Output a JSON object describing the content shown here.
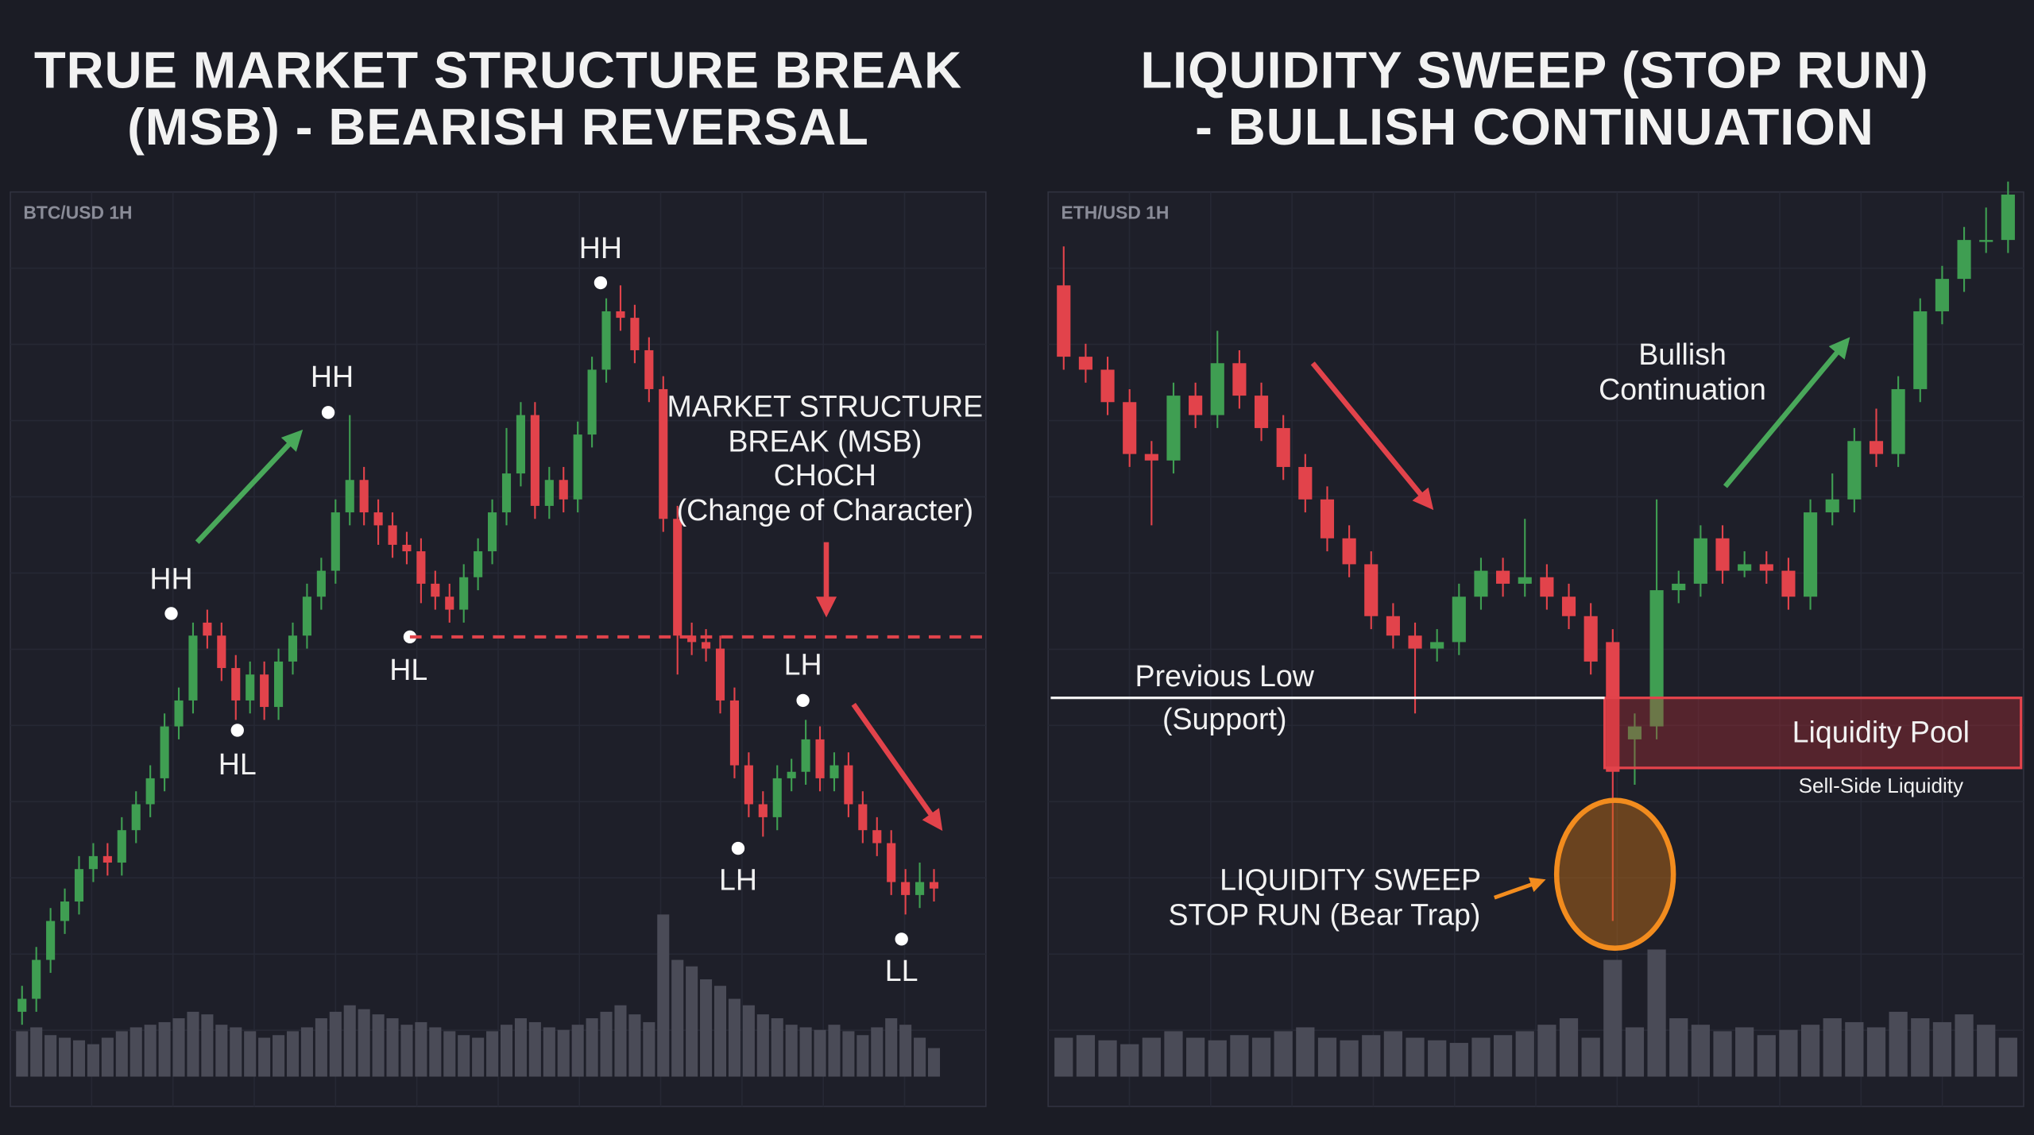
{
  "chart_data": [
    {
      "type": "candlestick",
      "title_lines": [
        "TRUE MARKET STRUCTURE BREAK",
        "(MSB) - BEARISH REVERSAL"
      ],
      "symbol": "BTC/USD 1H",
      "up_color": "#3f9e52",
      "down_color": "#e2434b",
      "volume_color": "#4a4b57",
      "open": [
        95,
        105,
        135,
        165,
        180,
        205,
        215,
        210,
        235,
        255,
        275,
        315,
        335,
        395,
        385,
        360,
        335,
        355,
        330,
        365,
        385,
        415,
        435,
        480,
        505,
        480,
        470,
        455,
        450,
        425,
        415,
        405,
        430,
        450,
        480,
        510,
        555,
        485,
        505,
        490,
        540,
        590,
        635,
        630,
        605,
        575,
        475,
        385,
        380,
        375,
        335,
        285,
        255,
        245,
        275,
        280,
        305,
        275,
        285,
        255,
        235,
        225,
        195,
        185,
        195
      ],
      "high": [
        115,
        145,
        175,
        190,
        215,
        225,
        225,
        245,
        265,
        285,
        325,
        345,
        395,
        405,
        395,
        370,
        365,
        365,
        375,
        395,
        425,
        445,
        490,
        555,
        515,
        490,
        480,
        465,
        460,
        435,
        425,
        440,
        460,
        490,
        545,
        565,
        565,
        515,
        515,
        550,
        600,
        645,
        655,
        640,
        615,
        585,
        485,
        395,
        390,
        385,
        345,
        295,
        265,
        285,
        290,
        320,
        315,
        295,
        295,
        265,
        245,
        235,
        205,
        210,
        205
      ],
      "low": [
        85,
        95,
        125,
        155,
        170,
        195,
        200,
        200,
        225,
        245,
        265,
        305,
        325,
        375,
        350,
        320,
        325,
        320,
        320,
        355,
        375,
        405,
        425,
        470,
        470,
        455,
        445,
        440,
        410,
        405,
        395,
        395,
        420,
        440,
        470,
        500,
        475,
        475,
        480,
        480,
        530,
        580,
        620,
        595,
        565,
        465,
        355,
        370,
        365,
        325,
        275,
        245,
        230,
        235,
        265,
        270,
        265,
        265,
        245,
        225,
        215,
        185,
        170,
        175,
        180
      ],
      "close": [
        105,
        135,
        165,
        180,
        205,
        215,
        210,
        235,
        255,
        275,
        315,
        335,
        385,
        385,
        360,
        335,
        355,
        330,
        365,
        385,
        415,
        435,
        480,
        505,
        480,
        470,
        455,
        450,
        425,
        415,
        405,
        430,
        450,
        480,
        510,
        555,
        485,
        505,
        490,
        540,
        590,
        635,
        630,
        605,
        575,
        475,
        385,
        380,
        375,
        335,
        285,
        255,
        245,
        275,
        280,
        305,
        275,
        285,
        255,
        235,
        225,
        195,
        185,
        195,
        190
      ],
      "volume": [
        35,
        38,
        32,
        30,
        28,
        25,
        30,
        35,
        38,
        40,
        42,
        45,
        50,
        48,
        40,
        38,
        35,
        30,
        32,
        35,
        38,
        45,
        50,
        55,
        52,
        48,
        45,
        40,
        42,
        38,
        35,
        32,
        30,
        35,
        40,
        45,
        42,
        38,
        36,
        40,
        45,
        50,
        55,
        48,
        42,
        125,
        90,
        85,
        75,
        70,
        60,
        55,
        48,
        45,
        40,
        38,
        36,
        40,
        35,
        32,
        38,
        45,
        40,
        30,
        22
      ],
      "labels": [
        "HH",
        "HL",
        "HH",
        "HL",
        "HH",
        "LH",
        "LH",
        "LL"
      ],
      "annotations": [
        "MARKET STRUCTURE",
        "BREAK (MSB)",
        "CHoCH",
        "(Change of Character)"
      ]
    },
    {
      "type": "candlestick",
      "title_lines": [
        "LIQUIDITY SWEEP (STOP RUN)",
        "- BULLISH CONTINUATION"
      ],
      "symbol": "ETH/USD 1H",
      "up_color": "#3f9e52",
      "down_color": "#e2434b",
      "volume_color": "#4a4b57",
      "open": [
        655,
        600,
        590,
        565,
        525,
        520,
        570,
        555,
        595,
        570,
        545,
        515,
        490,
        460,
        440,
        400,
        385,
        375,
        380,
        415,
        435,
        425,
        430,
        415,
        400,
        380,
        305,
        315,
        420,
        425,
        460,
        435,
        440,
        435,
        415,
        480,
        490,
        535,
        525,
        575,
        635,
        660,
        690,
        690
      ],
      "high": [
        685,
        610,
        600,
        575,
        535,
        580,
        580,
        620,
        605,
        580,
        555,
        525,
        500,
        470,
        450,
        410,
        395,
        390,
        425,
        445,
        445,
        475,
        440,
        425,
        410,
        390,
        325,
        490,
        435,
        470,
        470,
        450,
        450,
        445,
        490,
        510,
        545,
        560,
        585,
        645,
        670,
        700,
        715,
        735
      ],
      "low": [
        590,
        580,
        555,
        515,
        470,
        510,
        545,
        545,
        560,
        535,
        505,
        480,
        450,
        430,
        390,
        375,
        325,
        365,
        370,
        405,
        415,
        415,
        405,
        390,
        355,
        165,
        270,
        305,
        410,
        415,
        425,
        430,
        425,
        405,
        405,
        470,
        480,
        515,
        515,
        565,
        625,
        650,
        680,
        680
      ],
      "close": [
        600,
        590,
        565,
        525,
        520,
        570,
        555,
        595,
        570,
        545,
        515,
        490,
        460,
        440,
        400,
        385,
        375,
        380,
        415,
        435,
        425,
        430,
        415,
        400,
        365,
        280,
        315,
        420,
        425,
        460,
        435,
        440,
        435,
        415,
        480,
        490,
        535,
        525,
        575,
        635,
        660,
        690,
        690,
        725
      ],
      "volume": [
        30,
        32,
        28,
        25,
        30,
        35,
        30,
        28,
        32,
        30,
        35,
        38,
        30,
        28,
        32,
        35,
        30,
        28,
        26,
        30,
        32,
        35,
        40,
        45,
        30,
        90,
        38,
        98,
        45,
        40,
        35,
        38,
        32,
        36,
        40,
        45,
        42,
        38,
        50,
        45,
        42,
        48,
        40,
        30
      ],
      "annotations": [
        "Bullish",
        "Continuation",
        "Previous Low",
        "(Support)",
        "Liquidity Pool",
        "Sell-Side Liquidity",
        "LIQUIDITY SWEEP",
        "STOP RUN (Bear Trap)"
      ]
    }
  ]
}
